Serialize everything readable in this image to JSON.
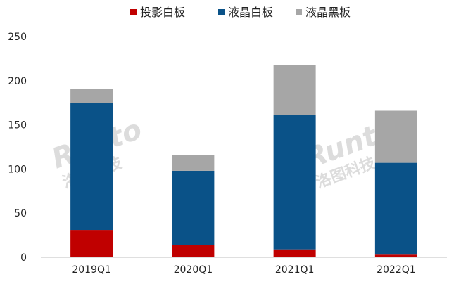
{
  "chart_data": {
    "type": "bar",
    "stacked": true,
    "categories": [
      "2019Q1",
      "2020Q1",
      "2021Q1",
      "2022Q1"
    ],
    "series": [
      {
        "name": "投影白板",
        "color": "#c00000",
        "values": [
          31,
          14,
          9,
          3
        ]
      },
      {
        "name": "液晶白板",
        "color": "#0a5288",
        "values": [
          144,
          84,
          152,
          104
        ]
      },
      {
        "name": "液晶黑板",
        "color": "#a6a6a6",
        "values": [
          16,
          18,
          57,
          59
        ]
      }
    ],
    "ylim": [
      0,
      250
    ],
    "yticks": [
      0,
      50,
      100,
      150,
      200,
      250
    ],
    "legend_position": "top",
    "grid": false
  },
  "watermark": {
    "logo_text": "Runto",
    "logo_subtext": "洛图科技"
  }
}
